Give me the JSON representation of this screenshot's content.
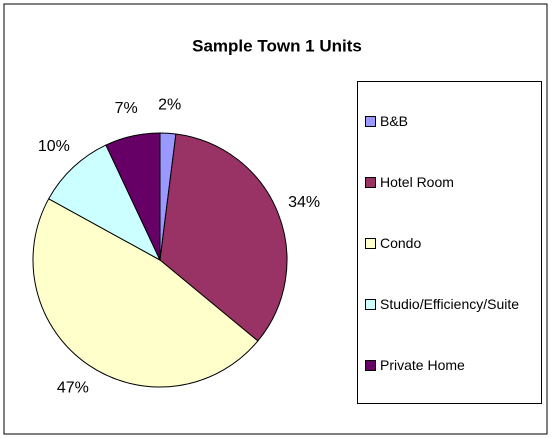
{
  "chart_data": {
    "type": "pie",
    "title": "Sample Town 1 Units",
    "categories": [
      "B&B",
      "Hotel Room",
      "Condo",
      "Studio/Efficiency/Suite",
      "Private Home"
    ],
    "values": [
      2,
      34,
      47,
      10,
      7
    ],
    "value_labels": [
      "2%",
      "34%",
      "47%",
      "10%",
      "7%"
    ],
    "colors": [
      "#9999ff",
      "#993366",
      "#ffffcc",
      "#ccffff",
      "#660066"
    ],
    "legend": "right"
  }
}
